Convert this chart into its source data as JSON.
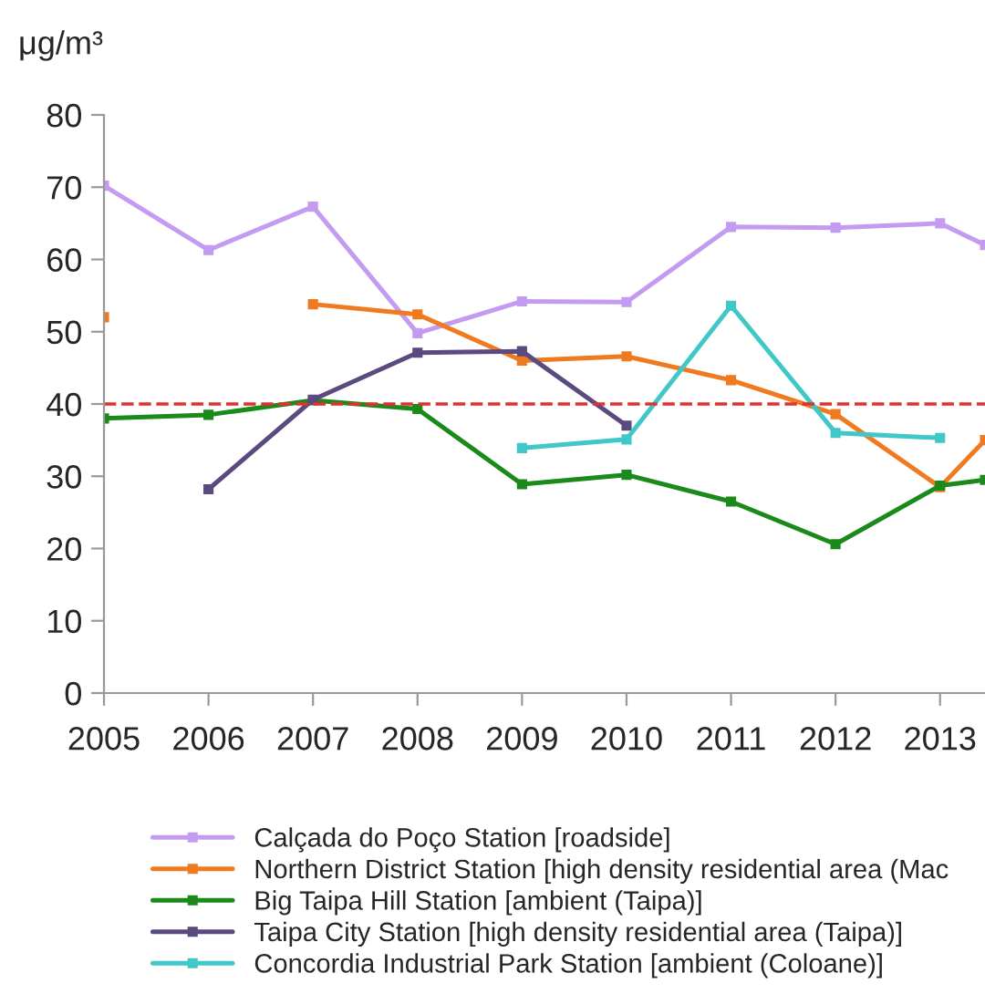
{
  "chart_data": {
    "type": "line",
    "ylabel": "μg/m³",
    "x": [
      2005,
      2006,
      2007,
      2008,
      2009,
      2010,
      2011,
      2012,
      2013,
      2013.43
    ],
    "series": [
      {
        "name": "Calçada do Poço Station [roadside]",
        "color": "#c39bf0",
        "values": [
          70.2,
          61.3,
          67.3,
          49.8,
          54.2,
          54.1,
          64.5,
          64.4,
          65.0,
          62
        ]
      },
      {
        "name": "Northern District Station [high density residential area (Mac",
        "color": "#f07a20",
        "values": [
          52,
          null,
          53.8,
          52.4,
          46.0,
          46.6,
          43.3,
          38.6,
          28.5,
          35
        ]
      },
      {
        "name": "Big Taipa Hill Station [ambient (Taipa)]",
        "color": "#1a8a1a",
        "values": [
          38.0,
          38.5,
          40.5,
          39.3,
          28.9,
          30.2,
          26.5,
          20.6,
          28.7,
          29.5
        ]
      },
      {
        "name": "Taipa City Station [high density residential area (Taipa)]",
        "color": "#5a4a80",
        "values": [
          null,
          28.2,
          40.6,
          47.1,
          47.3,
          37.0,
          null,
          null,
          null,
          null
        ]
      },
      {
        "name": "Concordia Industrial Park Station [ambient (Coloane)]",
        "color": "#40c8c8",
        "values": [
          null,
          null,
          null,
          null,
          33.9,
          35.1,
          53.6,
          36.0,
          35.3,
          null
        ]
      }
    ],
    "xlim": [
      2005,
      2013.43
    ],
    "xticks": [
      2005,
      2006,
      2007,
      2008,
      2009,
      2010,
      2011,
      2012,
      2013
    ],
    "ylim": [
      0,
      80
    ],
    "yticks": [
      0,
      10,
      20,
      30,
      40,
      50,
      60,
      70,
      80
    ],
    "ref_lines": [
      {
        "axis": "y",
        "value": 40,
        "color": "#e03030",
        "line_style": "dashed"
      }
    ],
    "marker": "square",
    "line_style": "solid",
    "legend": "bottom",
    "grid": false
  }
}
